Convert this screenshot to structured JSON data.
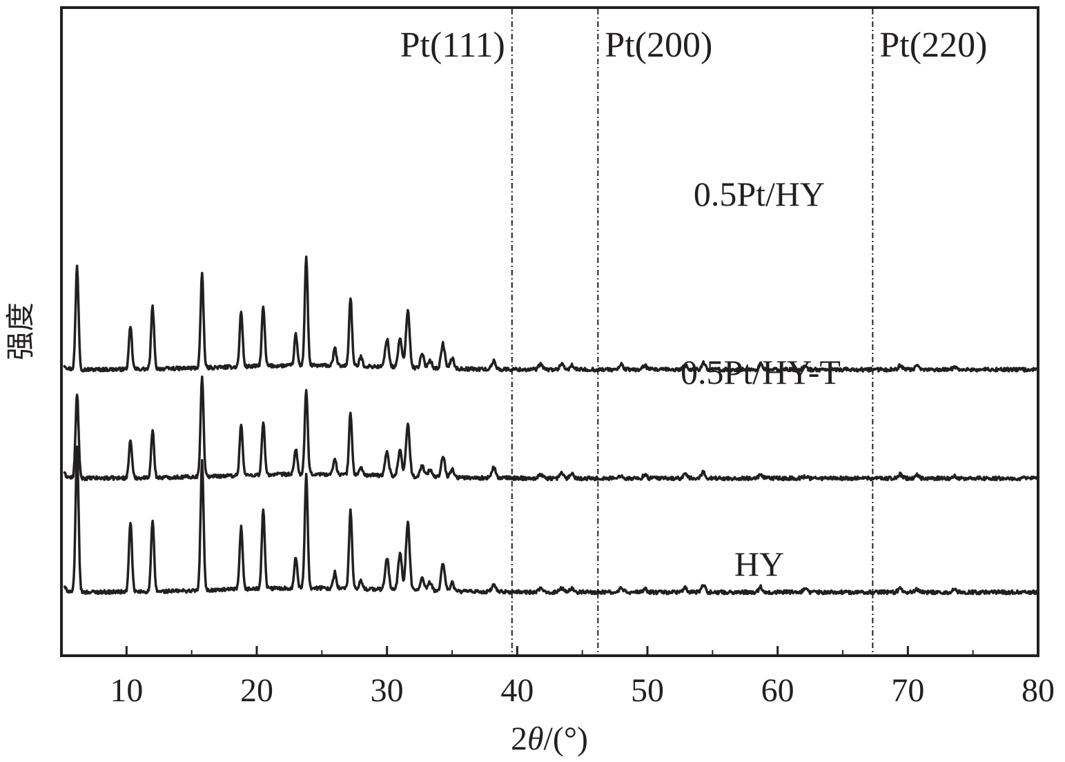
{
  "chart_data": {
    "type": "line",
    "xlabel_prefix": "2",
    "xlabel_symbol": "θ",
    "xlabel_suffix": "/(°)",
    "ylabel": "强度",
    "xlim": [
      5,
      80
    ],
    "xticks": [
      10,
      20,
      30,
      40,
      50,
      60,
      70,
      80
    ],
    "yticks": [],
    "grid": false,
    "reference_lines": [
      {
        "x": 39.6,
        "label": "Pt(111)",
        "label_side": "left"
      },
      {
        "x": 46.2,
        "label": "Pt(200)",
        "label_side": "right"
      },
      {
        "x": 67.3,
        "label": "Pt(220)",
        "label_side": "right"
      }
    ],
    "peaks_2theta": [
      6.2,
      10.3,
      12.0,
      15.8,
      18.8,
      20.5,
      23.0,
      23.8,
      26.0,
      27.2,
      28.0,
      30.0,
      31.0,
      31.6,
      32.7,
      33.3,
      34.3,
      35.0,
      38.2,
      41.8,
      43.4,
      44.2,
      48.0,
      49.8,
      52.9,
      54.3,
      58.7,
      62.1,
      69.4,
      70.7,
      73.6
    ],
    "series": [
      {
        "name": "0.5Pt/HY",
        "offset": 2.15,
        "amplitudes": [
          1.0,
          0.41,
          0.6,
          0.9,
          0.53,
          0.57,
          0.3,
          1.05,
          0.17,
          0.66,
          0.09,
          0.27,
          0.28,
          0.55,
          0.13,
          0.08,
          0.24,
          0.1,
          0.08,
          0.05,
          0.05,
          0.04,
          0.05,
          0.04,
          0.04,
          0.07,
          0.05,
          0.03,
          0.04,
          0.03,
          0.03
        ]
      },
      {
        "name": "0.5Pt/HY-T",
        "offset": 1.1,
        "amplitudes": [
          0.82,
          0.37,
          0.45,
          0.97,
          0.5,
          0.5,
          0.25,
          0.81,
          0.16,
          0.6,
          0.08,
          0.23,
          0.25,
          0.5,
          0.11,
          0.07,
          0.21,
          0.08,
          0.1,
          0.04,
          0.05,
          0.05,
          0.03,
          0.03,
          0.04,
          0.06,
          0.03,
          0.02,
          0.04,
          0.03,
          0.02
        ]
      },
      {
        "name": "HY",
        "offset": 0.0,
        "amplitudes": [
          1.4,
          0.68,
          0.68,
          1.25,
          0.6,
          0.76,
          0.3,
          1.1,
          0.16,
          0.76,
          0.08,
          0.3,
          0.35,
          0.65,
          0.12,
          0.08,
          0.27,
          0.08,
          0.07,
          0.03,
          0.04,
          0.04,
          0.04,
          0.03,
          0.04,
          0.07,
          0.05,
          0.03,
          0.04,
          0.03,
          0.03
        ]
      }
    ],
    "line_color": "#231f20"
  }
}
